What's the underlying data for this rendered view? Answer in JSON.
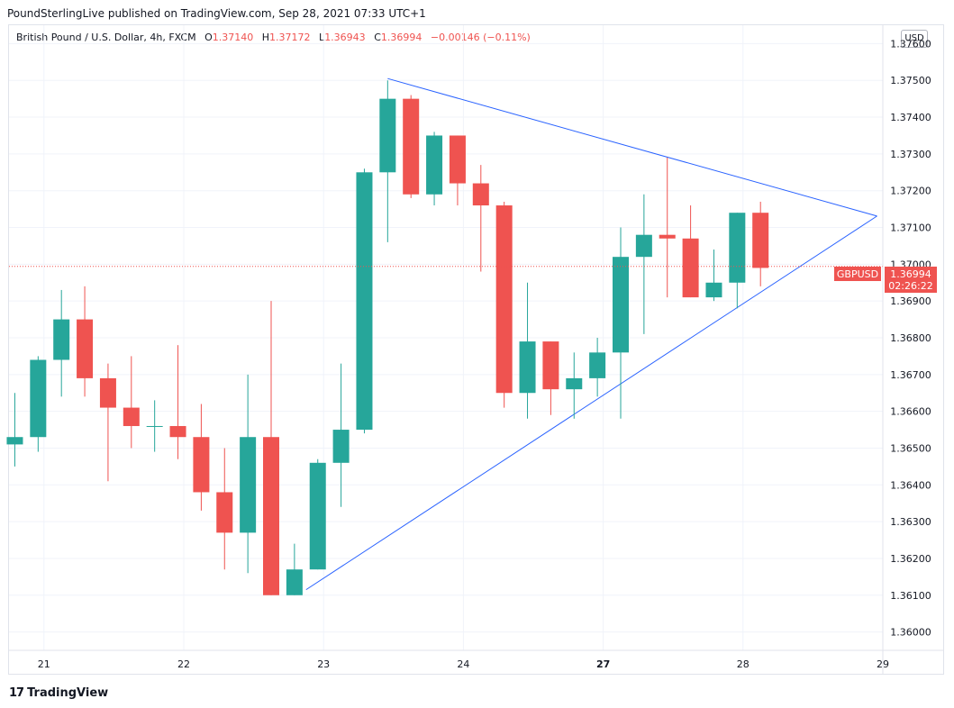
{
  "publisher_line": "PoundSterlingLive published on TradingView.com, Sep 28, 2021 07:33 UTC+1",
  "legend": {
    "symbol": "British Pound / U.S. Dollar, 4h, FXCM",
    "o_key": "O",
    "o_val": "1.37140",
    "h_key": "H",
    "h_val": "1.37172",
    "l_key": "L",
    "l_val": "1.36943",
    "c_key": "C",
    "c_val": "1.36994",
    "change": "−0.00146 (−0.11%)"
  },
  "currency_button": "USD",
  "price_tag": {
    "symbol": "GBPUSD",
    "price": "1.36994",
    "countdown": "02:26:22"
  },
  "footer": {
    "brand": "TradingView",
    "mark": "17"
  },
  "colors": {
    "up": "#26a69a",
    "down": "#ef5350",
    "trendline": "#2962ff",
    "grid": "#f0f3fa",
    "current_price": "#ef5350"
  },
  "chart_data": {
    "type": "candlestick",
    "title": "British Pound / U.S. Dollar, 4h, FXCM",
    "ylim": [
      1.3595,
      1.3765
    ],
    "xlim": [
      -0.25,
      37.25
    ],
    "yticks": [
      "1.37600",
      "1.37500",
      "1.37400",
      "1.37300",
      "1.37200",
      "1.37100",
      "1.37000",
      "1.36900",
      "1.36800",
      "1.36700",
      "1.36600",
      "1.36500",
      "1.36400",
      "1.36300",
      "1.36200",
      "1.36100",
      "1.36000"
    ],
    "xticks": [
      {
        "label": "21",
        "x": 1.25,
        "bold": false
      },
      {
        "label": "22",
        "x": 7.25,
        "bold": false
      },
      {
        "label": "23",
        "x": 13.25,
        "bold": false
      },
      {
        "label": "24",
        "x": 19.25,
        "bold": false
      },
      {
        "label": "27",
        "x": 25.25,
        "bold": true
      },
      {
        "label": "28",
        "x": 31.25,
        "bold": false
      },
      {
        "label": "29",
        "x": 37.25,
        "bold": false
      }
    ],
    "current_price": 1.36994,
    "candles": [
      {
        "o": 1.3651,
        "h": 1.3665,
        "l": 1.3645,
        "c": 1.3653
      },
      {
        "o": 1.3653,
        "h": 1.3675,
        "l": 1.3649,
        "c": 1.3674
      },
      {
        "o": 1.3674,
        "h": 1.3693,
        "l": 1.3664,
        "c": 1.3685
      },
      {
        "o": 1.3685,
        "h": 1.3694,
        "l": 1.3664,
        "c": 1.3669
      },
      {
        "o": 1.3669,
        "h": 1.3673,
        "l": 1.3641,
        "c": 1.3661
      },
      {
        "o": 1.3661,
        "h": 1.3675,
        "l": 1.365,
        "c": 1.3656
      },
      {
        "o": 1.3656,
        "h": 1.3663,
        "l": 1.3649,
        "c": 1.3656
      },
      {
        "o": 1.3656,
        "h": 1.3678,
        "l": 1.3647,
        "c": 1.3653
      },
      {
        "o": 1.3653,
        "h": 1.3662,
        "l": 1.3633,
        "c": 1.3638
      },
      {
        "o": 1.3638,
        "h": 1.365,
        "l": 1.3617,
        "c": 1.3627
      },
      {
        "o": 1.3627,
        "h": 1.367,
        "l": 1.3616,
        "c": 1.3653
      },
      {
        "o": 1.3653,
        "h": 1.369,
        "l": 1.361,
        "c": 1.361
      },
      {
        "o": 1.361,
        "h": 1.3624,
        "l": 1.361,
        "c": 1.3617
      },
      {
        "o": 1.3617,
        "h": 1.3647,
        "l": 1.3617,
        "c": 1.3646
      },
      {
        "o": 1.3646,
        "h": 1.3673,
        "l": 1.3634,
        "c": 1.3655
      },
      {
        "o": 1.3655,
        "h": 1.3726,
        "l": 1.3654,
        "c": 1.3725
      },
      {
        "o": 1.3725,
        "h": 1.375,
        "l": 1.3706,
        "c": 1.3745
      },
      {
        "o": 1.3745,
        "h": 1.3746,
        "l": 1.3718,
        "c": 1.3719
      },
      {
        "o": 1.3719,
        "h": 1.3736,
        "l": 1.3716,
        "c": 1.3735
      },
      {
        "o": 1.3735,
        "h": 1.3735,
        "l": 1.3716,
        "c": 1.3722
      },
      {
        "o": 1.3722,
        "h": 1.3727,
        "l": 1.3698,
        "c": 1.3716
      },
      {
        "o": 1.3716,
        "h": 1.3717,
        "l": 1.3661,
        "c": 1.3665
      },
      {
        "o": 1.3665,
        "h": 1.3695,
        "l": 1.3658,
        "c": 1.3679
      },
      {
        "o": 1.3679,
        "h": 1.3679,
        "l": 1.3659,
        "c": 1.3666
      },
      {
        "o": 1.3666,
        "h": 1.3676,
        "l": 1.3658,
        "c": 1.3669
      },
      {
        "o": 1.3669,
        "h": 1.368,
        "l": 1.3664,
        "c": 1.3676
      },
      {
        "o": 1.3676,
        "h": 1.371,
        "l": 1.3658,
        "c": 1.3702
      },
      {
        "o": 1.3702,
        "h": 1.3719,
        "l": 1.3681,
        "c": 1.3708
      },
      {
        "o": 1.3708,
        "h": 1.3729,
        "l": 1.3691,
        "c": 1.3707
      },
      {
        "o": 1.3707,
        "h": 1.3716,
        "l": 1.3691,
        "c": 1.3691
      },
      {
        "o": 1.3691,
        "h": 1.3704,
        "l": 1.369,
        "c": 1.3695
      },
      {
        "o": 1.3695,
        "h": 1.3714,
        "l": 1.3688,
        "c": 1.3714
      },
      {
        "o": 1.3714,
        "h": 1.3717,
        "l": 1.3694,
        "c": 1.3699
      }
    ],
    "trendlines": [
      {
        "x1": 16,
        "y1": 1.37505,
        "x2": 37.0,
        "y2": 1.37131
      },
      {
        "x1": 12.5,
        "y1": 1.36115,
        "x2": 37.0,
        "y2": 1.37131
      }
    ]
  }
}
